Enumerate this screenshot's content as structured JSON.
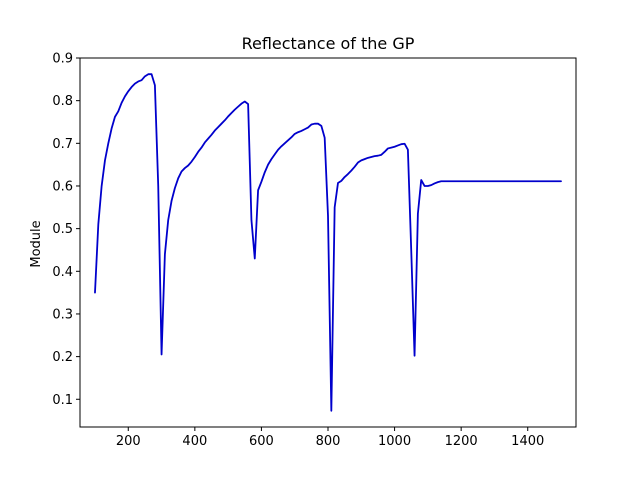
{
  "chart_data": {
    "type": "line",
    "title": "Reflectance of the GP",
    "xlabel": "",
    "ylabel": "Module",
    "xlim": [
      55,
      1545
    ],
    "ylim": [
      0.035,
      0.9
    ],
    "xticks": [
      200,
      400,
      600,
      800,
      1000,
      1200,
      1400
    ],
    "yticks": [
      0.1,
      0.2,
      0.3,
      0.4,
      0.5,
      0.6,
      0.7,
      0.8,
      0.9
    ],
    "grid": false,
    "line_color": "#0000cc",
    "series": [
      {
        "x": [
          100,
          110,
          120,
          130,
          140,
          150,
          160,
          170,
          180,
          190,
          200,
          210,
          220,
          230,
          240,
          250,
          260,
          270,
          280,
          290,
          300,
          310,
          320,
          330,
          340,
          350,
          360,
          370,
          380,
          390,
          400,
          410,
          420,
          430,
          440,
          450,
          460,
          470,
          480,
          490,
          500,
          510,
          520,
          530,
          540,
          550,
          560,
          570,
          580,
          590,
          600,
          610,
          620,
          630,
          640,
          650,
          660,
          670,
          680,
          690,
          700,
          710,
          720,
          730,
          740,
          750,
          760,
          770,
          780,
          790,
          800,
          810,
          820,
          830,
          840,
          850,
          860,
          870,
          880,
          890,
          900,
          910,
          920,
          930,
          940,
          950,
          960,
          970,
          980,
          990,
          1000,
          1010,
          1020,
          1030,
          1040,
          1050,
          1060,
          1070,
          1080,
          1090,
          1100,
          1110,
          1120,
          1130,
          1140,
          1150,
          1160,
          1170,
          1180,
          1190,
          1200,
          1210,
          1220,
          1230,
          1240,
          1250,
          1260,
          1270,
          1280,
          1290,
          1300,
          1310,
          1320,
          1330,
          1340,
          1350,
          1360,
          1370,
          1380,
          1390,
          1400,
          1410,
          1420,
          1430,
          1440,
          1450,
          1460,
          1470,
          1480,
          1490,
          1500
        ],
        "y": [
          0.35,
          0.51,
          0.6,
          0.66,
          0.7,
          0.735,
          0.762,
          0.775,
          0.795,
          0.81,
          0.822,
          0.832,
          0.84,
          0.845,
          0.848,
          0.857,
          0.862,
          0.862,
          0.836,
          0.6,
          0.205,
          0.44,
          0.52,
          0.565,
          0.595,
          0.618,
          0.634,
          0.642,
          0.648,
          0.657,
          0.668,
          0.68,
          0.69,
          0.702,
          0.711,
          0.72,
          0.73,
          0.738,
          0.746,
          0.754,
          0.763,
          0.771,
          0.779,
          0.786,
          0.793,
          0.798,
          0.792,
          0.52,
          0.43,
          0.59,
          0.61,
          0.632,
          0.65,
          0.663,
          0.674,
          0.685,
          0.693,
          0.7,
          0.707,
          0.714,
          0.722,
          0.726,
          0.729,
          0.733,
          0.737,
          0.744,
          0.746,
          0.746,
          0.741,
          0.713,
          0.53,
          0.073,
          0.55,
          0.607,
          0.612,
          0.621,
          0.628,
          0.636,
          0.645,
          0.655,
          0.66,
          0.663,
          0.666,
          0.668,
          0.67,
          0.671,
          0.673,
          0.68,
          0.688,
          0.69,
          0.692,
          0.695,
          0.698,
          0.699,
          0.685,
          0.45,
          0.202,
          0.535,
          0.614,
          0.6,
          0.6,
          0.602,
          0.606,
          0.609,
          0.611,
          0.611,
          0.611,
          0.611,
          0.611,
          0.611,
          0.611,
          0.611,
          0.611,
          0.611,
          0.611,
          0.611,
          0.611,
          0.611,
          0.611,
          0.611,
          0.611,
          0.611,
          0.611,
          0.611,
          0.611,
          0.611,
          0.611,
          0.611,
          0.611,
          0.611,
          0.611,
          0.611,
          0.611,
          0.611,
          0.611,
          0.611,
          0.611,
          0.611,
          0.611,
          0.611,
          0.611
        ]
      }
    ]
  }
}
